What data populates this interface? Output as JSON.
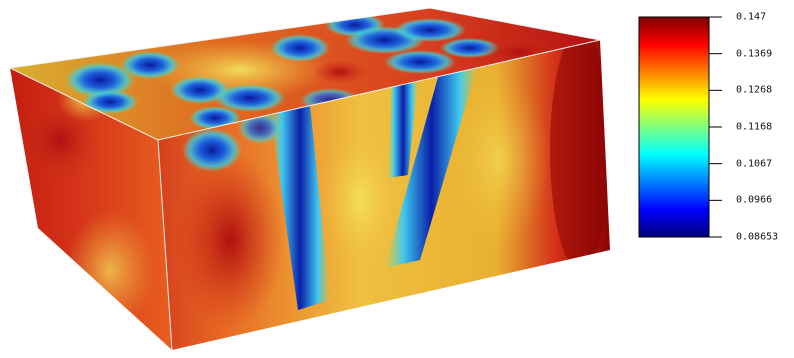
{
  "colorbar": {
    "colormap": "jet",
    "max_label": "0.147",
    "min_label": "0.08653",
    "ticks": [
      "0.147",
      "0.1369",
      "0.1268",
      "0.1168",
      "0.1067",
      "0.0966",
      "0.08653"
    ],
    "colors": [
      "#00007f",
      "#0000ff",
      "#007fff",
      "#00ffff",
      "#7fff7f",
      "#ffff00",
      "#ff7f00",
      "#ff0000",
      "#7f0000"
    ]
  },
  "volume": {
    "description_colors": {
      "high": "#a40000",
      "mid": "#f0d040",
      "low": "#1a2fc0"
    }
  }
}
